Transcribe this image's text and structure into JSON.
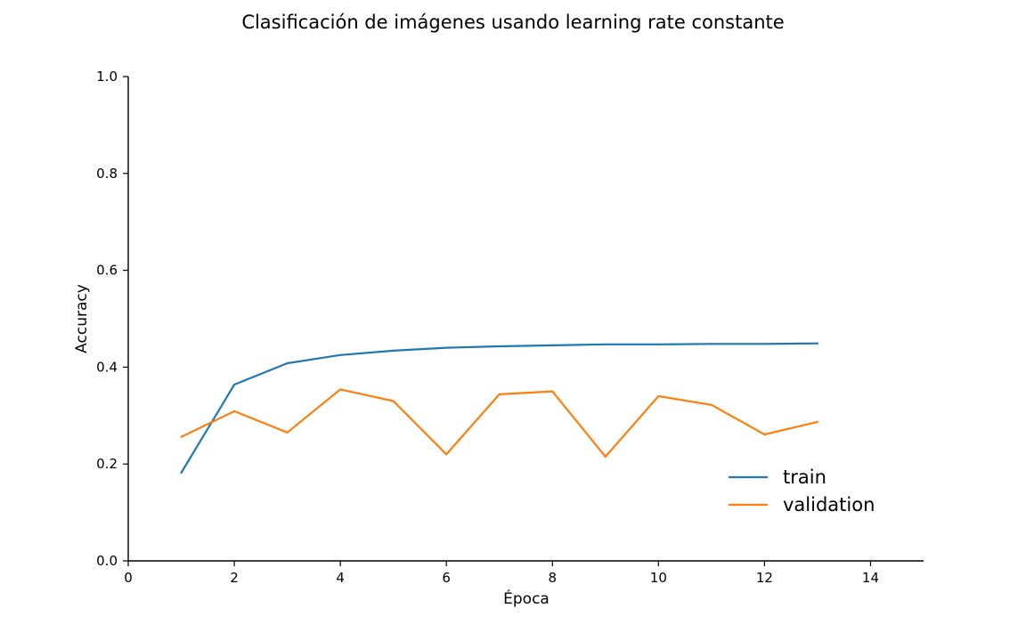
{
  "chart_data": {
    "type": "line",
    "title": "Clasificación de imágenes usando learning rate constante",
    "xlabel": "Época",
    "ylabel": "Accuracy",
    "xlim": [
      0,
      15
    ],
    "ylim": [
      0.0,
      1.0
    ],
    "xticks": [
      0,
      2,
      4,
      6,
      8,
      10,
      12,
      14
    ],
    "yticks": [
      0.0,
      0.2,
      0.4,
      0.6,
      0.8,
      1.0
    ],
    "xtick_labels": [
      "0",
      "2",
      "4",
      "6",
      "8",
      "10",
      "12",
      "14"
    ],
    "ytick_labels": [
      "0.0",
      "0.2",
      "0.4",
      "0.6",
      "0.8",
      "1.0"
    ],
    "grid": false,
    "legend_position": "lower-right",
    "x": [
      1,
      2,
      3,
      4,
      5,
      6,
      7,
      8,
      9,
      10,
      11,
      12,
      13
    ],
    "series": [
      {
        "name": "train",
        "color": "#1f77b4",
        "values": [
          0.182,
          0.364,
          0.408,
          0.425,
          0.434,
          0.44,
          0.443,
          0.445,
          0.447,
          0.447,
          0.448,
          0.448,
          0.449
        ]
      },
      {
        "name": "validation",
        "color": "#ff7f0e",
        "values": [
          0.256,
          0.309,
          0.265,
          0.354,
          0.33,
          0.22,
          0.344,
          0.35,
          0.215,
          0.34,
          0.322,
          0.261,
          0.287
        ]
      }
    ]
  }
}
